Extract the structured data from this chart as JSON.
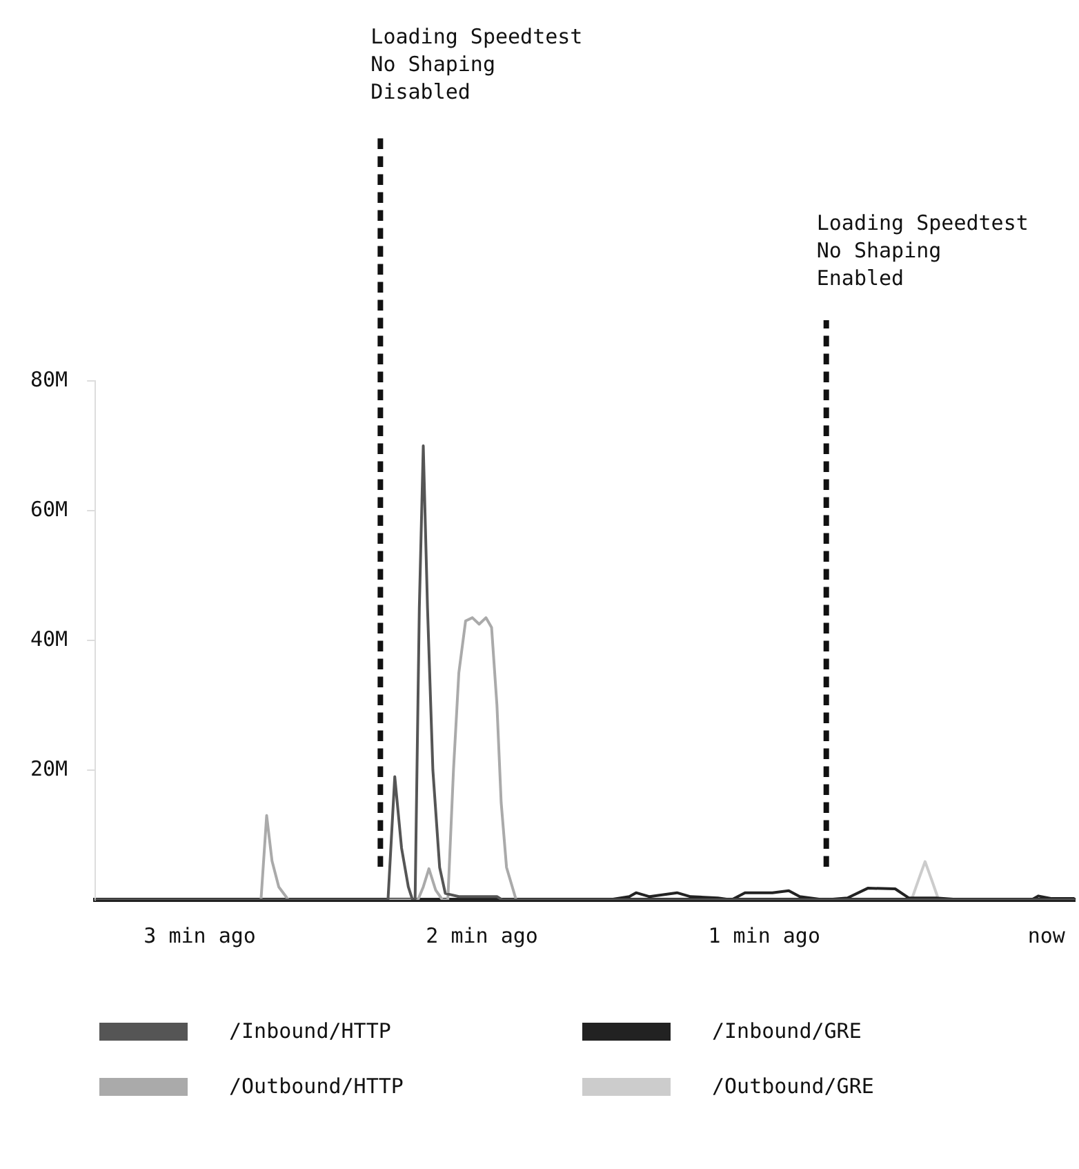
{
  "chart_data": {
    "type": "line",
    "xlim": [
      -3.37,
      0.1
    ],
    "xticks": [
      {
        "value": -3,
        "label": "3 min ago"
      },
      {
        "value": -2,
        "label": "2 min ago"
      },
      {
        "value": -1,
        "label": "1 min ago"
      },
      {
        "value": 0,
        "label": "now"
      }
    ],
    "ylim": [
      0,
      80
    ],
    "yticks": [
      {
        "value": 20,
        "label": "20M"
      },
      {
        "value": 40,
        "label": "40M"
      },
      {
        "value": 60,
        "label": "60M"
      },
      {
        "value": 80,
        "label": "80M"
      }
    ],
    "grid": false,
    "legend": "bottom",
    "marker": "none",
    "line_style": "solid",
    "series": [
      {
        "name": "/Inbound/HTTP",
        "color": "#555555",
        "x": [
          -3.37,
          -2.333,
          -2.309,
          -2.285,
          -2.261,
          -2.246,
          -2.237,
          -2.222,
          -2.208,
          -2.193,
          -2.174,
          -2.15,
          -2.13,
          -2.082,
          -1.947,
          -1.928,
          0.1
        ],
        "values": [
          0,
          0,
          19,
          8,
          2,
          0,
          0,
          45,
          70,
          45,
          20,
          5,
          1,
          0.5,
          0.5,
          0,
          0
        ]
      },
      {
        "name": "/Outbound/HTTP",
        "color": "#aaaaaa",
        "x": [
          -3.37,
          -2.783,
          -2.763,
          -2.744,
          -2.72,
          -2.686,
          -2.227,
          -2.208,
          -2.188,
          -2.164,
          -2.14,
          -2.121,
          -2.101,
          -2.082,
          -2.058,
          -2.034,
          -2.01,
          -1.986,
          -1.966,
          -1.947,
          -1.932,
          -1.913,
          -1.879,
          0.1
        ],
        "values": [
          0,
          0,
          13,
          6,
          2,
          0,
          0,
          2,
          4.8,
          1.5,
          0,
          0,
          20,
          35,
          43,
          43.5,
          42.5,
          43.5,
          42,
          30,
          15,
          5,
          0,
          0
        ]
      },
      {
        "name": "/Inbound/GRE",
        "color": "#222222",
        "x": [
          -3.37,
          -1.551,
          -1.478,
          -1.454,
          -1.406,
          -1.309,
          -1.261,
          -1.164,
          -1.116,
          -1.068,
          -0.971,
          -0.913,
          -0.874,
          -0.787,
          -0.705,
          -0.633,
          -0.536,
          -0.488,
          -0.391,
          -0.295,
          -0.053,
          -0.029,
          0.019,
          0.1
        ],
        "values": [
          0,
          0,
          0.5,
          1.1,
          0.5,
          1.1,
          0.5,
          0.3,
          0,
          1.1,
          1.1,
          1.4,
          0.5,
          0,
          0.3,
          1.8,
          1.7,
          0.3,
          0.3,
          0,
          0,
          0.6,
          0.2,
          0.2
        ]
      },
      {
        "name": "/Outbound/GRE",
        "color": "#cccccc",
        "x": [
          -0.478,
          -0.454,
          -0.43,
          -0.406,
          -0.382
        ],
        "values": [
          0,
          3,
          5.9,
          3,
          0
        ]
      }
    ],
    "ref_lines": [
      {
        "axis": "x",
        "value": -2.36,
        "label": "Loading Speedtest\nNo Shaping\nDisabled",
        "color": "#111111",
        "line_style": "dashed"
      },
      {
        "axis": "x",
        "value": -0.78,
        "label": "Loading Speedtest\nNo Shaping\nEnabled",
        "color": "#111111",
        "line_style": "dashed"
      }
    ]
  }
}
